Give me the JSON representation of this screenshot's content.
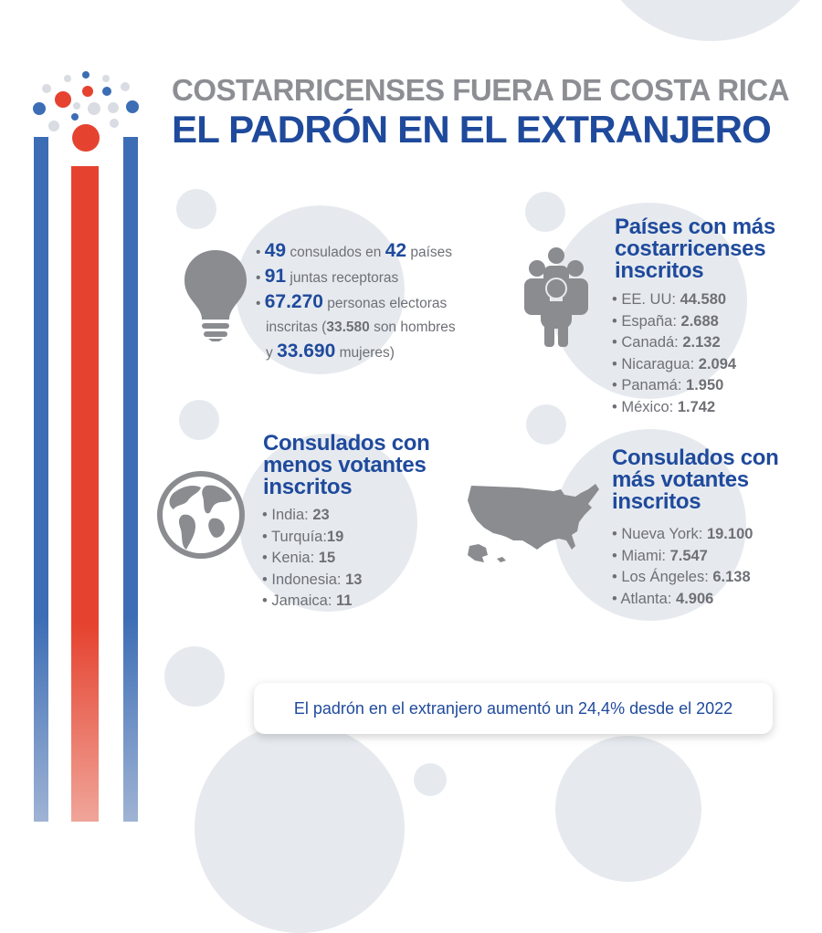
{
  "header": {
    "title_line1": "COSTARRICENSES FUERA DE COSTA RICA",
    "title_line2": "EL PADRÓN EN EL EXTRANJERO"
  },
  "summary": {
    "consulates_num": "49",
    "consulates_text": "consulados en",
    "countries_num": "42",
    "countries_text": "países",
    "juntas_num": "91",
    "juntas_text": "juntas receptoras",
    "voters_num": "67.270",
    "voters_text": "personas electoras",
    "voters_text2": "inscritas (",
    "men_num": "33.580",
    "men_text": "son hombres",
    "women_prefix": "y",
    "women_num": "33.690",
    "women_text": "mujeres)"
  },
  "top_countries": {
    "heading_line1": "Países con más",
    "heading_line2": "costarricenses",
    "heading_line3": "inscritos",
    "items": [
      {
        "label": "EE. UU:",
        "value": "44.580"
      },
      {
        "label": "España:",
        "value": "2.688"
      },
      {
        "label": "Canadá:",
        "value": "2.132"
      },
      {
        "label": "Nicaragua:",
        "value": "2.094"
      },
      {
        "label": "Panamá:",
        "value": "1.950"
      },
      {
        "label": "México:",
        "value": "1.742"
      }
    ]
  },
  "fewest_consulates": {
    "heading_line1": "Consulados con",
    "heading_line2": "menos votantes",
    "heading_line3": "inscritos",
    "items": [
      {
        "label": "India:",
        "value": "23"
      },
      {
        "label": "Turquía:",
        "value": "19"
      },
      {
        "label": "Kenia:",
        "value": "15"
      },
      {
        "label": "Indonesia:",
        "value": "13"
      },
      {
        "label": "Jamaica:",
        "value": "11"
      }
    ]
  },
  "most_consulates": {
    "heading_line1": "Consulados con",
    "heading_line2": "más votantes",
    "heading_line3": "inscritos",
    "items": [
      {
        "label": "Nueva York:",
        "value": "19.100"
      },
      {
        "label": "Miami:",
        "value": "7.547"
      },
      {
        "label": "Los Ángeles:",
        "value": "6.138"
      },
      {
        "label": "Atlanta:",
        "value": "4.906"
      }
    ]
  },
  "footer": {
    "banner_text": "El padrón en el extranjero aumentó un 24,4% desde el 2022"
  },
  "icons": [
    "lightbulb-icon",
    "people-group-icon",
    "globe-icon",
    "usa-map-icon"
  ],
  "colors": {
    "blue": "#1f4a9c",
    "stripe_blue": "#3c6db5",
    "red": "#e5432f",
    "gray_text": "#6e7076",
    "title_gray": "#8c8e93",
    "circle": "#e6eaef"
  }
}
